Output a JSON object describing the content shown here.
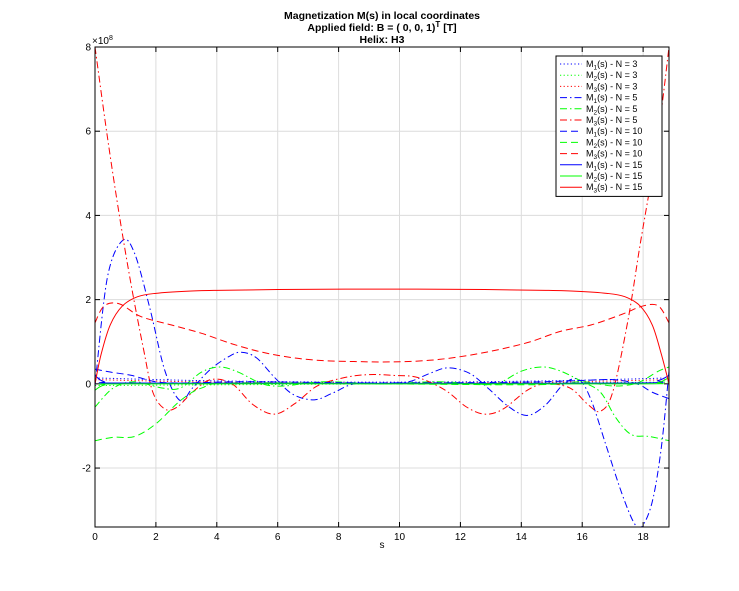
{
  "chart_data": {
    "type": "line",
    "title": [
      "Magnetization M(s) in local coordinates",
      "Applied field: B = ( 0, 0, 1)",
      "T",
      " [T]",
      "Helix: H3"
    ],
    "xlabel": "s",
    "ylabel": "",
    "y_multiplier": "×10",
    "y_multiplier_exp": "8",
    "xlim": [
      0,
      18.85
    ],
    "ylim": [
      -3.4,
      8
    ],
    "xticks": [
      0,
      2,
      4,
      6,
      8,
      10,
      12,
      14,
      16,
      18
    ],
    "yticks": [
      -2,
      0,
      2,
      4,
      6,
      8
    ],
    "grid": true,
    "legend_position": "top-right",
    "series": [
      {
        "label": "M_1(s)  - N = 3",
        "color": "#0000ff",
        "dash": "dotted",
        "points": [
          [
            0,
            0.14
          ],
          [
            4,
            0.07
          ],
          [
            9.42,
            0.04
          ],
          [
            14.8,
            0.07
          ],
          [
            18.85,
            0.14
          ]
        ]
      },
      {
        "label": "M_2(s)  - N = 3",
        "color": "#00ff00",
        "dash": "dotted",
        "points": [
          [
            0,
            -0.04
          ],
          [
            9.42,
            0.0
          ],
          [
            18.85,
            0.04
          ]
        ]
      },
      {
        "label": "M_3(s)  - N = 3",
        "color": "#ff0000",
        "dash": "dotted",
        "points": [
          [
            0,
            0.1
          ],
          [
            4,
            0.04
          ],
          [
            9.42,
            0.02
          ],
          [
            14.8,
            0.04
          ],
          [
            18.85,
            0.1
          ]
        ]
      },
      {
        "label": "M_1(s)  - N = 5",
        "color": "#0000ff",
        "dash": "dashdot",
        "points": [
          [
            0,
            -0.05
          ],
          [
            0.4,
            2.5
          ],
          [
            0.9,
            3.4
          ],
          [
            1.3,
            3.1
          ],
          [
            1.8,
            1.8
          ],
          [
            2.3,
            0.3
          ],
          [
            2.8,
            -0.4
          ],
          [
            3.2,
            -0.1
          ],
          [
            3.8,
            0.35
          ],
          [
            4.4,
            0.65
          ],
          [
            4.8,
            0.75
          ],
          [
            5.3,
            0.62
          ],
          [
            5.9,
            0.15
          ],
          [
            6.5,
            -0.25
          ],
          [
            7.2,
            -0.38
          ],
          [
            7.8,
            -0.22
          ],
          [
            8.5,
            0.0
          ],
          [
            9.4,
            0.02
          ],
          [
            10.3,
            0.05
          ],
          [
            11.0,
            0.25
          ],
          [
            11.6,
            0.38
          ],
          [
            12.3,
            0.25
          ],
          [
            12.9,
            -0.1
          ],
          [
            13.6,
            -0.55
          ],
          [
            14.2,
            -0.75
          ],
          [
            14.8,
            -0.5
          ],
          [
            15.4,
            0.0
          ],
          [
            15.9,
            0.1
          ],
          [
            16.3,
            -0.4
          ],
          [
            16.8,
            -1.5
          ],
          [
            17.3,
            -2.6
          ],
          [
            17.7,
            -3.3
          ],
          [
            17.95,
            -3.4
          ],
          [
            18.3,
            -2.8
          ],
          [
            18.6,
            -1.5
          ],
          [
            18.85,
            0.3
          ]
        ]
      },
      {
        "label": "M_2(s)  - N = 5",
        "color": "#00ff00",
        "dash": "dashdot",
        "points": [
          [
            0,
            -0.55
          ],
          [
            0.6,
            -0.1
          ],
          [
            1.3,
            0.05
          ],
          [
            2.2,
            -0.1
          ],
          [
            2.8,
            -0.1
          ],
          [
            3.5,
            0.28
          ],
          [
            4.1,
            0.4
          ],
          [
            4.7,
            0.28
          ],
          [
            5.5,
            0.0
          ],
          [
            6.2,
            -0.05
          ],
          [
            7.5,
            0.05
          ],
          [
            9.4,
            0.0
          ],
          [
            11.2,
            0.05
          ],
          [
            12.5,
            0.0
          ],
          [
            13.2,
            0.0
          ],
          [
            14.0,
            0.3
          ],
          [
            14.7,
            0.4
          ],
          [
            15.3,
            0.3
          ],
          [
            16.0,
            0.05
          ],
          [
            16.6,
            -0.2
          ],
          [
            17.1,
            -0.8
          ],
          [
            17.6,
            -1.2
          ],
          [
            18.2,
            -1.25
          ],
          [
            18.85,
            -1.35
          ]
        ]
      },
      {
        "label": "M_3(s)  - N = 5",
        "color": "#ff0000",
        "dash": "dashdot",
        "points": [
          [
            0,
            8.0
          ],
          [
            0.4,
            5.9
          ],
          [
            0.8,
            4.0
          ],
          [
            1.2,
            2.3
          ],
          [
            1.6,
            0.8
          ],
          [
            1.9,
            -0.2
          ],
          [
            2.3,
            -0.6
          ],
          [
            2.7,
            -0.55
          ],
          [
            3.2,
            -0.2
          ],
          [
            3.8,
            0.1
          ],
          [
            4.5,
            0.0
          ],
          [
            5.2,
            -0.5
          ],
          [
            5.9,
            -0.72
          ],
          [
            6.6,
            -0.45
          ],
          [
            7.3,
            -0.05
          ],
          [
            8.2,
            0.15
          ],
          [
            9.0,
            0.22
          ],
          [
            9.8,
            0.2
          ],
          [
            10.6,
            0.15
          ],
          [
            11.5,
            -0.15
          ],
          [
            12.2,
            -0.55
          ],
          [
            12.8,
            -0.72
          ],
          [
            13.4,
            -0.6
          ],
          [
            14.2,
            -0.15
          ],
          [
            14.8,
            0.0
          ],
          [
            15.6,
            -0.1
          ],
          [
            16.2,
            -0.5
          ],
          [
            16.6,
            -0.65
          ],
          [
            17.0,
            -0.2
          ],
          [
            17.5,
            1.5
          ],
          [
            17.9,
            3.3
          ],
          [
            18.3,
            5.0
          ],
          [
            18.6,
            6.5
          ],
          [
            18.85,
            8.0
          ]
        ]
      },
      {
        "label": "M_1(s)  - N = 10",
        "color": "#0000ff",
        "dash": "dashed",
        "points": [
          [
            0,
            0.35
          ],
          [
            0.5,
            0.28
          ],
          [
            1.2,
            0.2
          ],
          [
            2.0,
            0.05
          ],
          [
            3.0,
            0.02
          ],
          [
            5.0,
            0.05
          ],
          [
            9.4,
            0.02
          ],
          [
            14.0,
            0.04
          ],
          [
            16.0,
            0.08
          ],
          [
            17.0,
            0.1
          ],
          [
            17.8,
            0.0
          ],
          [
            18.3,
            -0.2
          ],
          [
            18.85,
            -0.35
          ]
        ]
      },
      {
        "label": "M_2(s)  - N = 10",
        "color": "#00ff00",
        "dash": "dashed",
        "points": [
          [
            0,
            -1.35
          ],
          [
            0.6,
            -1.27
          ],
          [
            1.3,
            -1.25
          ],
          [
            2.0,
            -0.95
          ],
          [
            2.8,
            -0.4
          ],
          [
            3.5,
            -0.1
          ],
          [
            4.5,
            0.02
          ],
          [
            9.4,
            0.0
          ],
          [
            14.5,
            -0.02
          ],
          [
            16.0,
            0.05
          ],
          [
            17.0,
            -0.05
          ],
          [
            17.8,
            0.02
          ],
          [
            18.5,
            0.3
          ],
          [
            18.85,
            0.4
          ]
        ]
      },
      {
        "label": "M_3(s)  - N = 10",
        "color": "#ff0000",
        "dash": "dashed",
        "points": [
          [
            0,
            1.45
          ],
          [
            0.3,
            1.85
          ],
          [
            0.8,
            1.9
          ],
          [
            1.5,
            1.6
          ],
          [
            2.5,
            1.4
          ],
          [
            3.5,
            1.2
          ],
          [
            4.5,
            0.95
          ],
          [
            5.5,
            0.75
          ],
          [
            6.5,
            0.62
          ],
          [
            7.5,
            0.55
          ],
          [
            8.5,
            0.53
          ],
          [
            9.4,
            0.52
          ],
          [
            10.3,
            0.53
          ],
          [
            11.3,
            0.58
          ],
          [
            12.3,
            0.68
          ],
          [
            13.3,
            0.82
          ],
          [
            14.3,
            1.0
          ],
          [
            15.3,
            1.25
          ],
          [
            16.3,
            1.4
          ],
          [
            17.3,
            1.65
          ],
          [
            18.0,
            1.85
          ],
          [
            18.5,
            1.85
          ],
          [
            18.85,
            1.45
          ]
        ]
      },
      {
        "label": "M_1(s)  - N = 15",
        "color": "#0000ff",
        "dash": "solid",
        "points": [
          [
            0,
            0.2
          ],
          [
            0.3,
            0.05
          ],
          [
            1.0,
            0.02
          ],
          [
            9.4,
            0.01
          ],
          [
            17.8,
            0.02
          ],
          [
            18.5,
            0.08
          ],
          [
            18.85,
            0.2
          ]
        ]
      },
      {
        "label": "M_2(s)  - N = 15",
        "color": "#00ff00",
        "dash": "solid",
        "points": [
          [
            0,
            -0.15
          ],
          [
            0.3,
            -0.03
          ],
          [
            1.0,
            0.0
          ],
          [
            9.4,
            0.0
          ],
          [
            17.8,
            0.0
          ],
          [
            18.5,
            0.03
          ],
          [
            18.85,
            0.15
          ]
        ]
      },
      {
        "label": "M_3(s)  - N = 15",
        "color": "#ff0000",
        "dash": "solid",
        "points": [
          [
            0,
            0.0
          ],
          [
            0.2,
            0.7
          ],
          [
            0.5,
            1.4
          ],
          [
            0.9,
            1.85
          ],
          [
            1.4,
            2.07
          ],
          [
            2.0,
            2.15
          ],
          [
            3.0,
            2.2
          ],
          [
            4.0,
            2.22
          ],
          [
            6.0,
            2.24
          ],
          [
            9.4,
            2.25
          ],
          [
            12.8,
            2.24
          ],
          [
            14.8,
            2.22
          ],
          [
            15.8,
            2.2
          ],
          [
            16.8,
            2.15
          ],
          [
            17.4,
            2.07
          ],
          [
            17.9,
            1.85
          ],
          [
            18.3,
            1.4
          ],
          [
            18.6,
            0.7
          ],
          [
            18.85,
            0.0
          ]
        ]
      }
    ]
  }
}
